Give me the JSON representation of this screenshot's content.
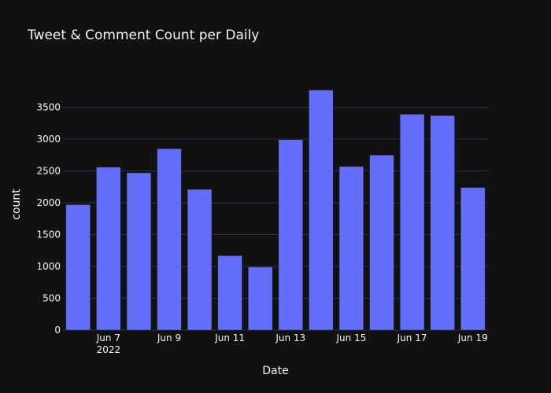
{
  "chart_data": {
    "type": "bar",
    "title": "Tweet & Comment Count per Daily",
    "xlabel": "Date",
    "ylabel": "count",
    "x": [
      "2022-06-06",
      "2022-06-07",
      "2022-06-08",
      "2022-06-09",
      "2022-06-10",
      "2022-06-11",
      "2022-06-12",
      "2022-06-13",
      "2022-06-14",
      "2022-06-15",
      "2022-06-16",
      "2022-06-17",
      "2022-06-18",
      "2022-06-19"
    ],
    "values": [
      1970,
      2560,
      2470,
      2850,
      2210,
      1170,
      990,
      2990,
      3770,
      2570,
      2750,
      3390,
      3370,
      2240
    ],
    "ylim": [
      0,
      3950
    ],
    "yticks": [
      0,
      500,
      1000,
      1500,
      2000,
      2500,
      3000,
      3500
    ],
    "xticks": [
      {
        "date": "2022-06-07",
        "label": "Jun 7",
        "sublabel": "2022"
      },
      {
        "date": "2022-06-09",
        "label": "Jun 9",
        "sublabel": ""
      },
      {
        "date": "2022-06-11",
        "label": "Jun 11",
        "sublabel": ""
      },
      {
        "date": "2022-06-13",
        "label": "Jun 13",
        "sublabel": ""
      },
      {
        "date": "2022-06-15",
        "label": "Jun 15",
        "sublabel": ""
      },
      {
        "date": "2022-06-17",
        "label": "Jun 17",
        "sublabel": ""
      },
      {
        "date": "2022-06-19",
        "label": "Jun 19",
        "sublabel": ""
      }
    ],
    "grid": true,
    "colors": {
      "bar": "#636efa",
      "background": "#111111",
      "grid": "#283442",
      "text": "#f2f5fa"
    }
  }
}
